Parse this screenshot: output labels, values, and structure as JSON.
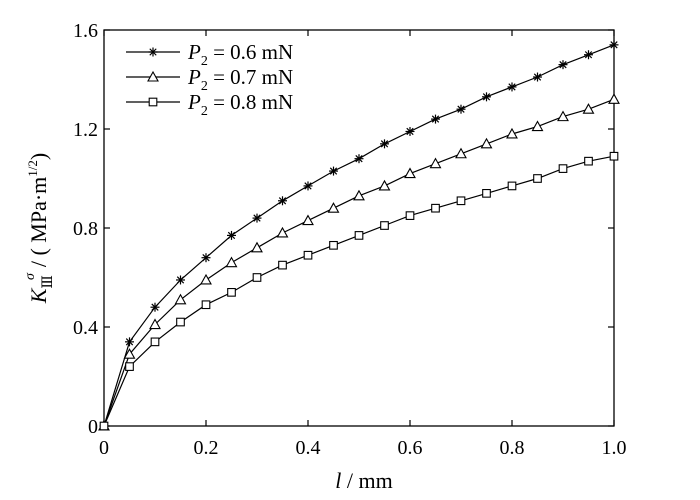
{
  "chart_data": {
    "type": "line",
    "xlabel": {
      "var": "l",
      "unit": " / mm"
    },
    "ylabel": {
      "K": "K",
      "sub": "Ⅲ",
      "sup": "σ",
      "rest": "/ ( MPa·m",
      "exp": "1/2",
      "close": ")"
    },
    "xlim": [
      0,
      1.0
    ],
    "ylim": [
      0,
      1.6
    ],
    "x_ticks": [
      "0",
      "0.2",
      "0.4",
      "0.6",
      "0.8",
      "1.0"
    ],
    "y_ticks": [
      "0",
      "0.4",
      "0.8",
      "1.2",
      "1.6"
    ],
    "x": [
      0,
      0.05,
      0.1,
      0.15,
      0.2,
      0.25,
      0.3,
      0.35,
      0.4,
      0.45,
      0.5,
      0.55,
      0.6,
      0.65,
      0.7,
      0.75,
      0.8,
      0.85,
      0.9,
      0.95,
      1.0
    ],
    "legend_position": "top-left",
    "series": [
      {
        "name": "P2 = 0.6 mN",
        "legend": {
          "P": "P",
          "sub": "2",
          "rest": " = 0.6 mN"
        },
        "marker": "star",
        "values": [
          0,
          0.34,
          0.48,
          0.59,
          0.68,
          0.77,
          0.84,
          0.91,
          0.97,
          1.03,
          1.08,
          1.14,
          1.19,
          1.24,
          1.28,
          1.33,
          1.37,
          1.41,
          1.46,
          1.5,
          1.54
        ]
      },
      {
        "name": "P2 = 0.7 mN",
        "legend": {
          "P": "P",
          "sub": "2",
          "rest": " = 0.7 mN"
        },
        "marker": "triangle",
        "values": [
          0,
          0.29,
          0.41,
          0.51,
          0.59,
          0.66,
          0.72,
          0.78,
          0.83,
          0.88,
          0.93,
          0.97,
          1.02,
          1.06,
          1.1,
          1.14,
          1.18,
          1.21,
          1.25,
          1.28,
          1.32
        ]
      },
      {
        "name": "P2 = 0.8 mN",
        "legend": {
          "P": "P",
          "sub": "2",
          "rest": " = 0.8 mN"
        },
        "marker": "square",
        "values": [
          0,
          0.24,
          0.34,
          0.42,
          0.49,
          0.54,
          0.6,
          0.65,
          0.69,
          0.73,
          0.77,
          0.81,
          0.85,
          0.88,
          0.91,
          0.94,
          0.97,
          1.0,
          1.04,
          1.07,
          1.09
        ]
      }
    ]
  }
}
